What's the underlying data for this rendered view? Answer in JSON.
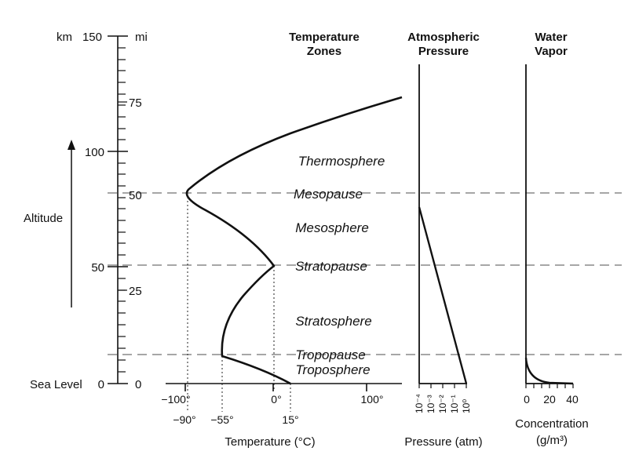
{
  "altitude_axis": {
    "km_unit": "km",
    "mi_unit": "mi",
    "km_labels": [
      "150",
      "100",
      "50",
      "0"
    ],
    "mi_labels": [
      "75",
      "50",
      "25",
      "0"
    ],
    "sea_level": "Sea Level",
    "altitude_label": "Altitude"
  },
  "headers": {
    "temperature_zones": [
      "Temperature",
      "Zones"
    ],
    "pressure": [
      "Atmospheric",
      "Pressure"
    ],
    "water_vapor": [
      "Water",
      "Vapor"
    ]
  },
  "zones": [
    "Thermosphere",
    "Mesopause",
    "Mesosphere",
    "Stratopause",
    "Stratosphere",
    "Tropopause",
    "Troposphere"
  ],
  "temperature_axis": {
    "ticks": [
      "−100°",
      "0°",
      "100°"
    ],
    "marks": [
      "−90°",
      "−55°",
      "15°"
    ],
    "title": "Temperature (°C)"
  },
  "pressure_axis": {
    "ticks": [
      "10⁻⁴",
      "10⁻³",
      "10⁻²",
      "10⁻¹",
      "10⁰"
    ],
    "title": "Pressure (atm)"
  },
  "vapor_axis": {
    "ticks": [
      "0",
      "20",
      "40"
    ],
    "title_line1": "Concentration",
    "title_line2": "(g/m³)"
  },
  "colors": {
    "line": "#111111",
    "dashed": "#999999"
  }
}
